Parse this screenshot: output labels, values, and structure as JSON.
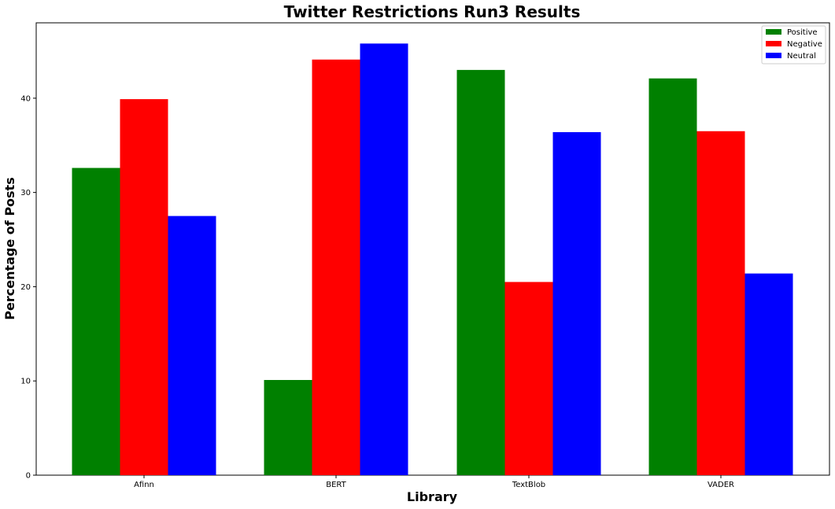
{
  "chart_data": {
    "type": "bar",
    "title": "Twitter Restrictions Run3 Results",
    "xlabel": "Library",
    "ylabel": "Percentage of Posts",
    "categories": [
      "Afinn",
      "BERT",
      "TextBlob",
      "VADER"
    ],
    "series": [
      {
        "name": "Positive",
        "color": "#008000",
        "values": [
          32.6,
          10.1,
          43.0,
          42.1
        ]
      },
      {
        "name": "Negative",
        "color": "#ff0000",
        "values": [
          39.9,
          44.1,
          20.5,
          36.5
        ]
      },
      {
        "name": "Neutral",
        "color": "#0000ff",
        "values": [
          27.5,
          45.8,
          36.4,
          21.4
        ]
      }
    ],
    "ylim": [
      0,
      48
    ],
    "yticks": [
      0,
      10,
      20,
      30,
      40
    ],
    "grid": false,
    "legend_position": "top-right"
  }
}
